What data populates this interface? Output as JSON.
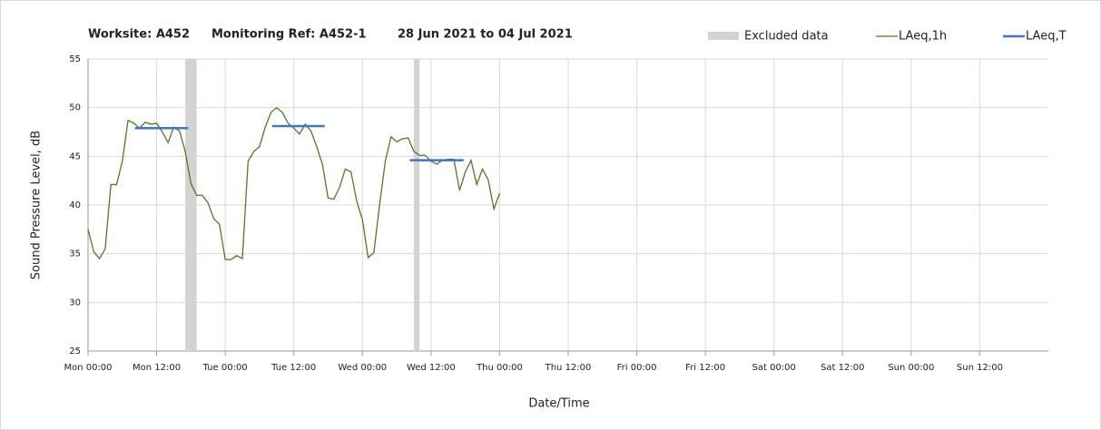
{
  "chart_data": {
    "type": "line",
    "title_parts": [
      "Worksite: A452",
      "Monitoring Ref: A452-1",
      "28 Jun 2021 to 04 Jul 2021"
    ],
    "xlabel": "Date/Time",
    "ylabel": "Sound Pressure Level, dB",
    "xlim": [
      0,
      168
    ],
    "xticks": [
      {
        "value": 0,
        "label": "Mon 00:00"
      },
      {
        "value": 12,
        "label": "Mon 12:00"
      },
      {
        "value": 24,
        "label": "Tue 00:00"
      },
      {
        "value": 36,
        "label": "Tue 12:00"
      },
      {
        "value": 48,
        "label": "Wed 00:00"
      },
      {
        "value": 60,
        "label": "Wed 12:00"
      },
      {
        "value": 72,
        "label": "Thu 00:00"
      },
      {
        "value": 84,
        "label": "Thu 12:00"
      },
      {
        "value": 96,
        "label": "Fri 00:00"
      },
      {
        "value": 108,
        "label": "Fri 12:00"
      },
      {
        "value": 120,
        "label": "Sat 00:00"
      },
      {
        "value": 132,
        "label": "Sat 12:00"
      },
      {
        "value": 144,
        "label": "Sun 00:00"
      },
      {
        "value": 156,
        "label": "Sun 12:00"
      }
    ],
    "ylim": [
      25,
      55
    ],
    "yticks": [
      25,
      30,
      35,
      40,
      45,
      50,
      55
    ],
    "grid": true,
    "excluded": {
      "name": "Excluded data",
      "color": "#d3d3d3",
      "ranges": [
        [
          17,
          19
        ],
        [
          57,
          58
        ]
      ]
    },
    "series": [
      {
        "name": "LAeq,1h",
        "color": "#4f7a28",
        "x": [
          0,
          1,
          2,
          3,
          4,
          5,
          6,
          7,
          8,
          9,
          10,
          11,
          12,
          13,
          14,
          15,
          16,
          17,
          18,
          19,
          20,
          21,
          22,
          23,
          24,
          25,
          26,
          27,
          28,
          29,
          30,
          31,
          32,
          33,
          34,
          35,
          36,
          37,
          38,
          39,
          40,
          41,
          42,
          43,
          44,
          45,
          46,
          47,
          48,
          49,
          50,
          51,
          52,
          53,
          54,
          55,
          56,
          57,
          58,
          59,
          60,
          61,
          62,
          63,
          64,
          65,
          66,
          67,
          68,
          69,
          70,
          71,
          72
        ],
        "values": [
          37.5,
          35.2,
          34.5,
          35.5,
          42.1,
          42.1,
          44.5,
          48.7,
          48.4,
          47.9,
          48.5,
          48.3,
          48.4,
          47.5,
          46.4,
          48.0,
          47.6,
          45.5,
          42.2,
          41.0,
          41.0,
          40.2,
          38.6,
          38.0,
          34.4,
          34.4,
          34.8,
          34.5,
          44.5,
          45.5,
          46.0,
          48.0,
          49.5,
          50.0,
          49.5,
          48.4,
          47.9,
          47.3,
          48.3,
          47.6,
          46.0,
          44.2,
          40.7,
          40.6,
          41.8,
          43.7,
          43.4,
          40.4,
          38.5,
          34.6,
          35.1,
          40.0,
          44.5,
          47.0,
          46.5,
          46.8,
          46.9,
          45.5,
          45.1,
          45.1,
          44.5,
          44.2,
          44.6,
          44.7,
          44.7,
          41.5,
          43.4,
          44.6,
          42.1,
          43.7,
          42.6,
          39.6,
          41.2
        ]
      },
      {
        "name": "LAeq,T",
        "color": "#4472c4",
        "segments": [
          {
            "x": [
              8.2,
              17.5
            ],
            "value": 47.9
          },
          {
            "x": [
              32.2,
              41.4
            ],
            "value": 48.1
          },
          {
            "x": [
              56.3,
              65.7
            ],
            "value": 44.6
          }
        ]
      }
    ]
  }
}
